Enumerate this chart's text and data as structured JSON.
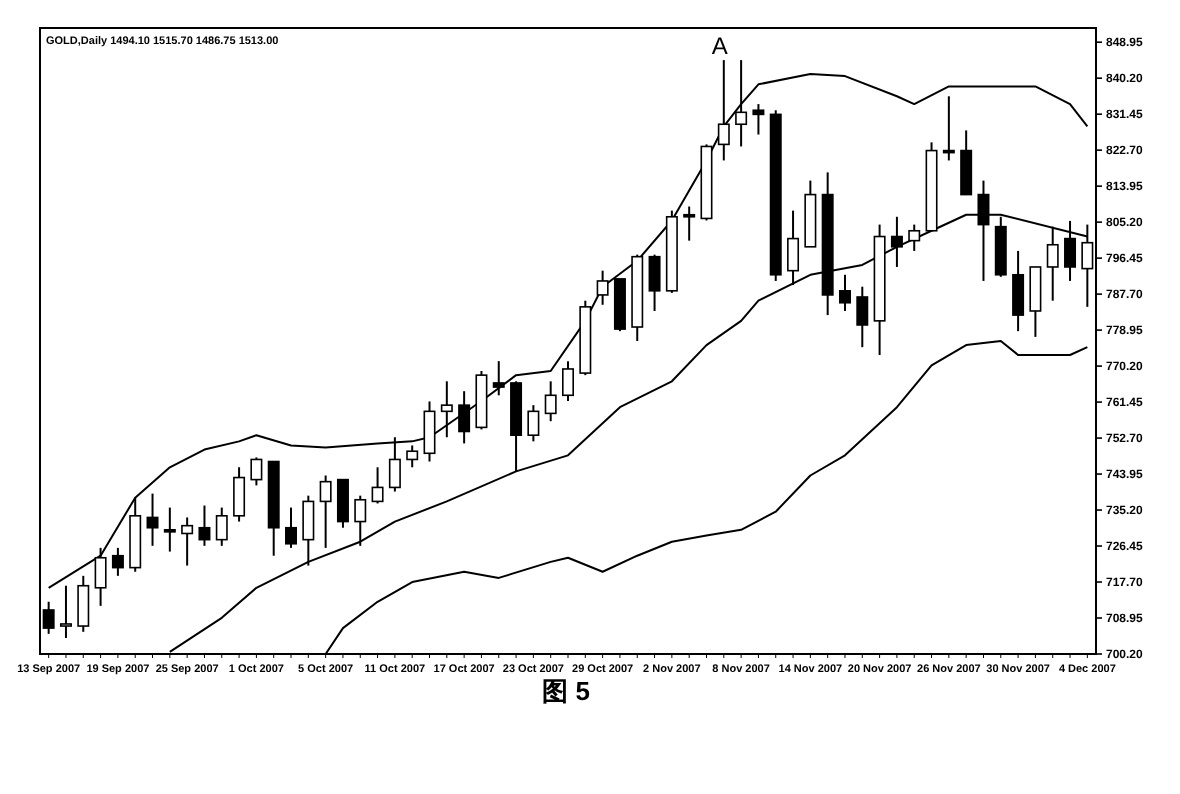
{
  "chart_data": {
    "type": "candlestick",
    "title": "GOLD,Daily 1494.10 1515.70 1486.75 1513.00",
    "annotations": [
      "A",
      "图 5"
    ],
    "categories": [
      "13 Sep 2007",
      null,
      null,
      null,
      "19 Sep 2007",
      null,
      null,
      null,
      "25 Sep 2007",
      null,
      null,
      null,
      "1 Oct 2007",
      null,
      null,
      null,
      "5 Oct 2007",
      null,
      null,
      null,
      "11 Oct 2007",
      null,
      null,
      null,
      "17 Oct 2007",
      null,
      null,
      null,
      "23 Oct 2007",
      null,
      null,
      null,
      "29 Oct 2007",
      null,
      null,
      null,
      "2 Nov 2007",
      null,
      null,
      null,
      "8 Nov 2007",
      null,
      null,
      null,
      "14 Nov 2007",
      null,
      null,
      null,
      "20 Nov 2007",
      null,
      null,
      null,
      "26 Nov 2007",
      null,
      null,
      null,
      "30 Nov 2007",
      null,
      null,
      null,
      "4 Dec 2007"
    ],
    "ohlc": [
      [
        710.9,
        712.9,
        705.1,
        706.5
      ],
      [
        707.0,
        716.8,
        704.1,
        707.5
      ],
      [
        707.0,
        719.2,
        705.6,
        716.8
      ],
      [
        716.3,
        726.0,
        711.9,
        723.6
      ],
      [
        724.1,
        726.0,
        719.2,
        721.2
      ],
      [
        721.2,
        738.2,
        720.2,
        733.8
      ],
      [
        733.4,
        739.2,
        726.5,
        730.9
      ],
      [
        730.4,
        735.8,
        725.1,
        729.9
      ],
      [
        729.5,
        733.4,
        721.7,
        731.4
      ],
      [
        730.9,
        736.3,
        726.5,
        728.0
      ],
      [
        728.0,
        735.8,
        726.5,
        733.8
      ],
      [
        733.8,
        745.6,
        732.4,
        743.1
      ],
      [
        742.6,
        748.0,
        741.2,
        747.5
      ],
      [
        747.0,
        747.0,
        724.1,
        730.9
      ],
      [
        730.9,
        735.8,
        726.0,
        727.0
      ],
      [
        728.0,
        738.7,
        721.7,
        737.3
      ],
      [
        737.3,
        743.6,
        726.0,
        742.1
      ],
      [
        742.6,
        742.6,
        730.9,
        732.4
      ],
      [
        732.4,
        738.7,
        726.5,
        737.7
      ],
      [
        737.3,
        745.6,
        736.8,
        740.7
      ],
      [
        740.7,
        752.9,
        739.7,
        747.5
      ],
      [
        747.5,
        750.9,
        745.6,
        749.5
      ],
      [
        749.0,
        761.6,
        747.0,
        759.2
      ],
      [
        759.2,
        766.5,
        752.9,
        760.7
      ],
      [
        760.7,
        764.1,
        751.4,
        754.3
      ],
      [
        755.3,
        769.0,
        754.8,
        768.0
      ],
      [
        766.1,
        771.4,
        763.1,
        765.1
      ],
      [
        766.1,
        766.5,
        744.6,
        753.4
      ],
      [
        753.4,
        760.7,
        751.9,
        759.2
      ],
      [
        758.7,
        766.5,
        756.8,
        763.1
      ],
      [
        763.1,
        771.4,
        761.7,
        769.5
      ],
      [
        768.5,
        786.1,
        768.0,
        784.6
      ],
      [
        787.5,
        793.4,
        785.1,
        790.9
      ],
      [
        791.4,
        791.4,
        778.7,
        779.2
      ],
      [
        779.7,
        797.3,
        776.3,
        796.8
      ],
      [
        796.8,
        797.3,
        783.6,
        788.5
      ],
      [
        788.5,
        808.0,
        788.0,
        806.5
      ],
      [
        807.0,
        809.0,
        800.7,
        806.5
      ],
      [
        806.1,
        824.1,
        805.6,
        823.6
      ],
      [
        824.1,
        844.6,
        820.2,
        829.0
      ],
      [
        829.0,
        844.6,
        823.6,
        831.9
      ],
      [
        832.4,
        833.9,
        826.5,
        831.4
      ],
      [
        831.4,
        832.4,
        790.9,
        792.4
      ],
      [
        793.4,
        808.0,
        789.9,
        801.2
      ],
      [
        799.2,
        815.3,
        799.2,
        811.9
      ],
      [
        811.9,
        817.3,
        782.6,
        787.5
      ],
      [
        788.5,
        792.4,
        783.6,
        785.6
      ],
      [
        787.0,
        789.5,
        774.8,
        780.2
      ],
      [
        781.2,
        804.6,
        772.9,
        801.7
      ],
      [
        801.7,
        806.5,
        794.3,
        799.2
      ],
      [
        800.7,
        804.6,
        798.2,
        803.1
      ],
      [
        803.1,
        824.6,
        803.1,
        822.6
      ],
      [
        822.6,
        835.8,
        820.2,
        822.1
      ],
      [
        822.6,
        827.5,
        811.9,
        811.9
      ],
      [
        811.9,
        815.3,
        790.9,
        804.6
      ],
      [
        804.1,
        806.5,
        791.9,
        792.4
      ],
      [
        792.4,
        798.2,
        778.7,
        782.6
      ],
      [
        783.6,
        794.3,
        777.3,
        794.3
      ],
      [
        794.3,
        804.1,
        786.1,
        799.7
      ],
      [
        801.2,
        805.5,
        790.9,
        794.3
      ],
      [
        793.9,
        804.6,
        784.6,
        800.2
      ]
    ],
    "series": [
      {
        "type": "line",
        "color": "#000000",
        "values": [
          716.3,
          null,
          null,
          724.1,
          null,
          738.2,
          null,
          745.6,
          null,
          749.9,
          null,
          751.9,
          753.4,
          null,
          750.9,
          null,
          750.4,
          null,
          null,
          751.4,
          null,
          751.9,
          752.9,
          null,
          null,
          761.7,
          null,
          768.0,
          null,
          769.0,
          null,
          781.2,
          789.5,
          null,
          795.8,
          null,
          805.6,
          null,
          820.2,
          828.5,
          833.9,
          838.7,
          null,
          null,
          841.2,
          null,
          840.7,
          null,
          null,
          835.8,
          833.9,
          null,
          838.2,
          null,
          838.2,
          null,
          838.2,
          838.2,
          null,
          833.9,
          828.5
        ]
      },
      {
        "type": "line",
        "color": "#000000",
        "values": [
          null,
          null,
          null,
          null,
          null,
          null,
          null,
          700.7,
          null,
          null,
          709.0,
          null,
          716.3,
          null,
          null,
          722.6,
          null,
          null,
          727.5,
          null,
          732.4,
          null,
          null,
          737.3,
          null,
          null,
          null,
          744.6,
          null,
          null,
          748.5,
          null,
          null,
          760.2,
          null,
          null,
          766.5,
          null,
          775.3,
          null,
          781.2,
          786.1,
          null,
          null,
          792.4,
          null,
          null,
          794.8,
          null,
          799.2,
          null,
          803.1,
          null,
          807.0,
          null,
          807.0,
          null,
          null,
          null,
          null,
          801.7
        ]
      },
      {
        "type": "line",
        "color": "#000000",
        "values": [
          null,
          null,
          null,
          null,
          null,
          null,
          null,
          null,
          null,
          null,
          null,
          null,
          null,
          null,
          null,
          null,
          700.2,
          706.5,
          null,
          712.9,
          null,
          717.7,
          null,
          null,
          720.2,
          null,
          718.7,
          null,
          null,
          722.6,
          723.6,
          null,
          720.2,
          null,
          724.1,
          null,
          727.5,
          null,
          729.0,
          null,
          730.4,
          null,
          734.8,
          null,
          743.6,
          null,
          748.5,
          null,
          null,
          760.2,
          null,
          770.4,
          null,
          775.3,
          null,
          776.3,
          772.9,
          null,
          null,
          772.9,
          774.8
        ]
      }
    ],
    "ylim": [
      700.2,
      852.4
    ],
    "yticks": [
      848.95,
      {
        "value": 840.2,
        "label": "840.20"
      },
      831.45,
      {
        "value": 822.7,
        "label": "822.70"
      },
      813.95,
      {
        "value": 805.2,
        "label": "805.20"
      },
      796.45,
      {
        "value": 787.7,
        "label": "787.70"
      },
      778.95,
      {
        "value": 770.2,
        "label": "770.20"
      },
      761.45,
      {
        "value": 752.7,
        "label": "752.70"
      },
      743.95,
      {
        "value": 735.2,
        "label": "735.20"
      },
      726.45,
      {
        "value": 717.7,
        "label": "717.70"
      },
      708.95,
      {
        "value": 700.2,
        "label": "700.20"
      }
    ],
    "grid": false
  }
}
